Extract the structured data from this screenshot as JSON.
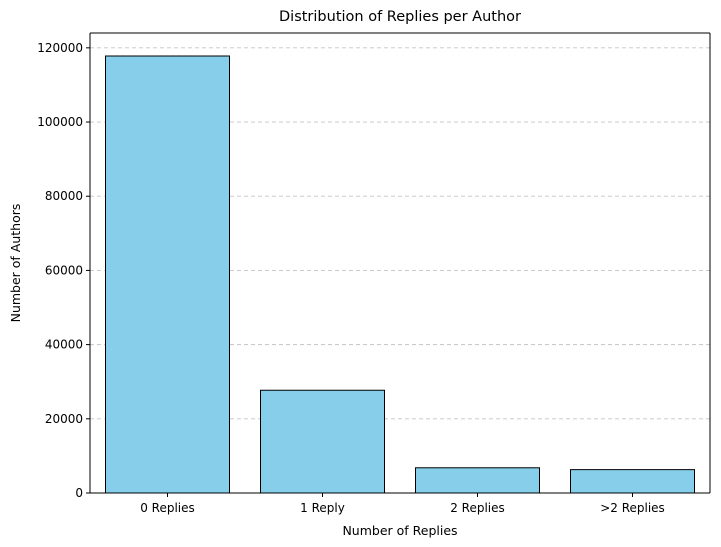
{
  "chart_data": {
    "type": "bar",
    "title": "Distribution of Replies per Author",
    "xlabel": "Number of Replies",
    "ylabel": "Number of Authors",
    "categories": [
      "0 Replies",
      "1 Reply",
      "2 Replies",
      ">2 Replies"
    ],
    "values": [
      117800,
      27700,
      6800,
      6300
    ],
    "ylim": [
      0,
      124000
    ],
    "yticks": [
      0,
      20000,
      40000,
      60000,
      80000,
      100000,
      120000
    ],
    "bar_color": "#87ceeb",
    "bar_edge_color": "#000000",
    "grid": "y-axis dashed",
    "legend": "none"
  }
}
